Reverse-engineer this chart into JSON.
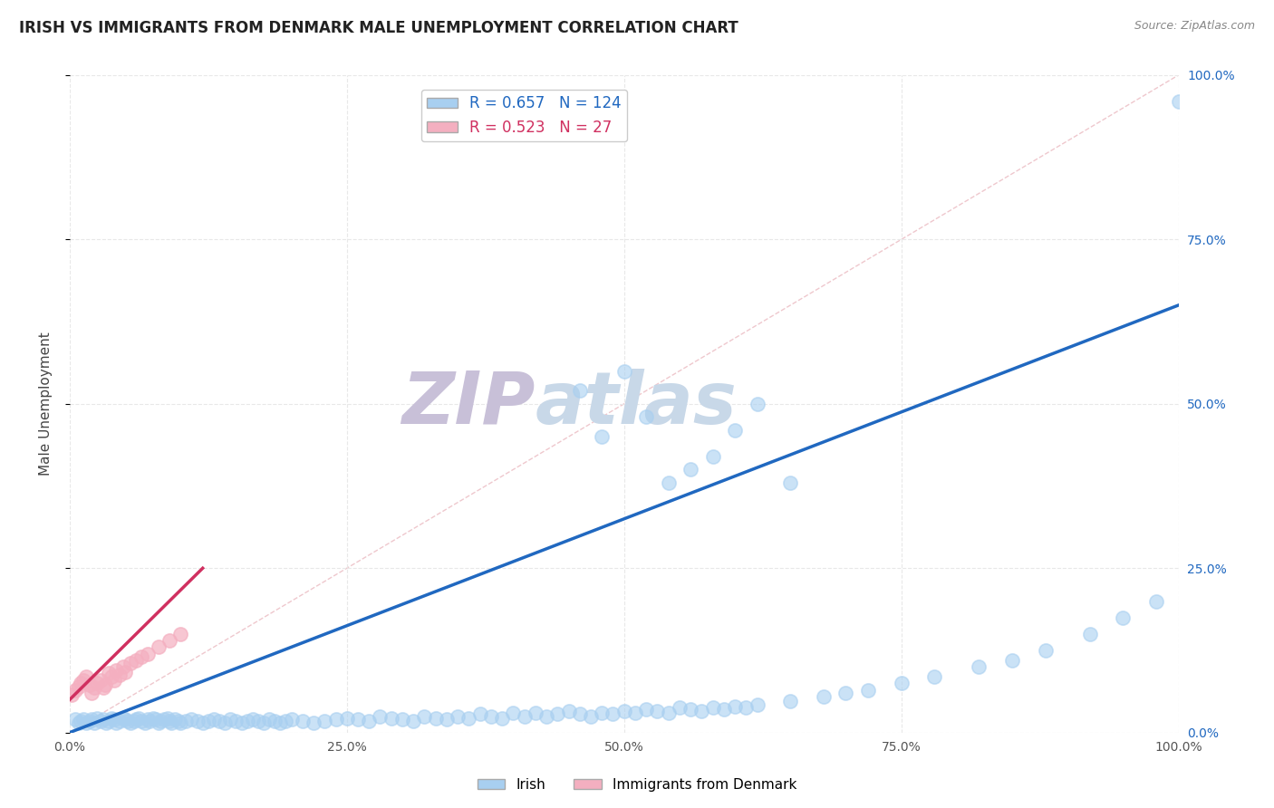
{
  "title": "IRISH VS IMMIGRANTS FROM DENMARK MALE UNEMPLOYMENT CORRELATION CHART",
  "source_text": "Source: ZipAtlas.com",
  "ylabel": "Male Unemployment",
  "legend_label_blue": "Irish",
  "legend_label_pink": "Immigrants from Denmark",
  "R_blue": 0.657,
  "N_blue": 124,
  "R_pink": 0.523,
  "N_pink": 27,
  "color_blue": "#a8cff0",
  "color_pink": "#f4afc0",
  "color_trendline_blue": "#2068c0",
  "color_trendline_pink": "#d03060",
  "color_diagonal": "#e8b0b8",
  "xlim": [
    0,
    1
  ],
  "ylim": [
    0,
    1
  ],
  "xticks": [
    0.0,
    0.25,
    0.5,
    0.75,
    1.0
  ],
  "yticks": [
    0.0,
    0.25,
    0.5,
    0.75,
    1.0
  ],
  "xtick_labels": [
    "0.0%",
    "25.0%",
    "50.0%",
    "75.0%",
    "100.0%"
  ],
  "ytick_labels_right": [
    "0.0%",
    "25.0%",
    "50.0%",
    "75.0%",
    "100.0%"
  ],
  "watermark": "ZIPatlas",
  "watermark_color_zi": "#c8c0d8",
  "watermark_color_atlas": "#c8d8e8",
  "background_color": "#ffffff",
  "grid_color": "#e8e8e8",
  "grid_style": "--",
  "blue_scatter_x": [
    0.005,
    0.008,
    0.01,
    0.012,
    0.015,
    0.018,
    0.02,
    0.022,
    0.025,
    0.028,
    0.03,
    0.033,
    0.035,
    0.038,
    0.04,
    0.042,
    0.045,
    0.048,
    0.05,
    0.052,
    0.055,
    0.058,
    0.06,
    0.062,
    0.065,
    0.068,
    0.07,
    0.072,
    0.075,
    0.078,
    0.08,
    0.082,
    0.085,
    0.088,
    0.09,
    0.092,
    0.095,
    0.098,
    0.1,
    0.105,
    0.11,
    0.115,
    0.12,
    0.125,
    0.13,
    0.135,
    0.14,
    0.145,
    0.15,
    0.155,
    0.16,
    0.165,
    0.17,
    0.175,
    0.18,
    0.185,
    0.19,
    0.195,
    0.2,
    0.21,
    0.22,
    0.23,
    0.24,
    0.25,
    0.26,
    0.27,
    0.28,
    0.29,
    0.3,
    0.31,
    0.32,
    0.33,
    0.34,
    0.35,
    0.36,
    0.37,
    0.38,
    0.39,
    0.4,
    0.41,
    0.42,
    0.43,
    0.44,
    0.45,
    0.46,
    0.47,
    0.48,
    0.49,
    0.5,
    0.51,
    0.52,
    0.53,
    0.54,
    0.55,
    0.56,
    0.57,
    0.58,
    0.59,
    0.6,
    0.61,
    0.62,
    0.65,
    0.68,
    0.7,
    0.72,
    0.75,
    0.78,
    0.82,
    0.85,
    0.88,
    0.92,
    0.95,
    0.98,
    1.0,
    0.46,
    0.48,
    0.5,
    0.52,
    0.54,
    0.56,
    0.58,
    0.6,
    0.62,
    0.65
  ],
  "blue_scatter_y": [
    0.02,
    0.015,
    0.018,
    0.02,
    0.015,
    0.018,
    0.02,
    0.015,
    0.022,
    0.018,
    0.02,
    0.015,
    0.018,
    0.022,
    0.02,
    0.015,
    0.018,
    0.022,
    0.02,
    0.018,
    0.015,
    0.018,
    0.02,
    0.022,
    0.018,
    0.015,
    0.02,
    0.018,
    0.022,
    0.02,
    0.015,
    0.018,
    0.02,
    0.022,
    0.018,
    0.015,
    0.02,
    0.018,
    0.015,
    0.018,
    0.02,
    0.018,
    0.015,
    0.018,
    0.02,
    0.018,
    0.015,
    0.02,
    0.018,
    0.015,
    0.018,
    0.02,
    0.018,
    0.015,
    0.02,
    0.018,
    0.015,
    0.018,
    0.02,
    0.018,
    0.015,
    0.018,
    0.02,
    0.022,
    0.02,
    0.018,
    0.025,
    0.022,
    0.02,
    0.018,
    0.025,
    0.022,
    0.02,
    0.025,
    0.022,
    0.028,
    0.025,
    0.022,
    0.03,
    0.025,
    0.03,
    0.025,
    0.028,
    0.032,
    0.028,
    0.025,
    0.03,
    0.028,
    0.032,
    0.03,
    0.035,
    0.032,
    0.03,
    0.038,
    0.035,
    0.032,
    0.038,
    0.035,
    0.04,
    0.038,
    0.042,
    0.048,
    0.055,
    0.06,
    0.065,
    0.075,
    0.085,
    0.1,
    0.11,
    0.125,
    0.15,
    0.175,
    0.2,
    0.96,
    0.52,
    0.45,
    0.55,
    0.48,
    0.38,
    0.4,
    0.42,
    0.46,
    0.5,
    0.38
  ],
  "pink_scatter_x": [
    0.002,
    0.005,
    0.008,
    0.01,
    0.012,
    0.015,
    0.018,
    0.02,
    0.022,
    0.025,
    0.028,
    0.03,
    0.032,
    0.035,
    0.038,
    0.04,
    0.042,
    0.045,
    0.048,
    0.05,
    0.055,
    0.06,
    0.065,
    0.07,
    0.08,
    0.09,
    0.1
  ],
  "pink_scatter_y": [
    0.058,
    0.065,
    0.07,
    0.075,
    0.08,
    0.085,
    0.072,
    0.06,
    0.068,
    0.075,
    0.08,
    0.068,
    0.072,
    0.09,
    0.085,
    0.08,
    0.095,
    0.088,
    0.1,
    0.092,
    0.105,
    0.11,
    0.115,
    0.12,
    0.13,
    0.14,
    0.15
  ],
  "blue_trend_x": [
    0.0,
    1.0
  ],
  "blue_trend_y": [
    0.0,
    0.65
  ],
  "pink_trend_x": [
    0.0,
    0.12
  ],
  "pink_trend_y": [
    0.05,
    0.25
  ]
}
